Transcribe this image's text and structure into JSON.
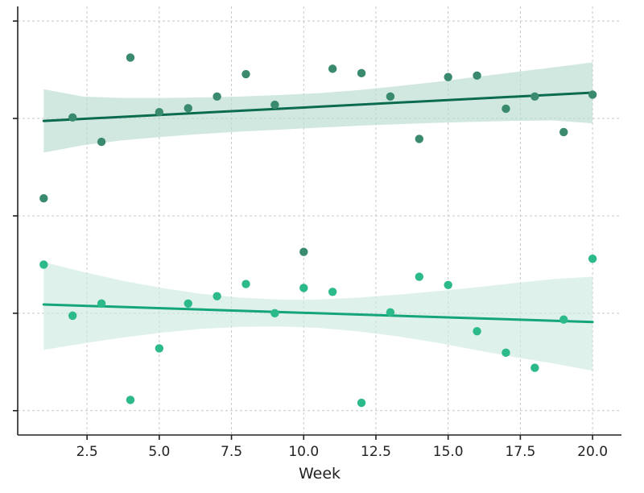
{
  "chart_data": {
    "type": "scatter",
    "xlabel": "Week",
    "ylabel": "",
    "xlim": [
      0.1,
      21.0
    ],
    "ylim": [
      -4.5,
      4.3
    ],
    "x_ticks": [
      2.5,
      5.0,
      7.5,
      10.0,
      12.5,
      15.0,
      17.5,
      20.0
    ],
    "x_tick_labels": [
      "2.5",
      "5.0",
      "7.5",
      "10.0",
      "12.5",
      "15.0",
      "17.5",
      "20.0"
    ],
    "y_ticks": [
      -4,
      -2,
      0,
      2,
      4
    ],
    "grid": true,
    "series": [
      {
        "color": "#3a8a6e",
        "points": [
          [
            1,
            0.36
          ],
          [
            2,
            2.02
          ],
          [
            3,
            1.52
          ],
          [
            4,
            3.25
          ],
          [
            5,
            2.13
          ],
          [
            6,
            2.21
          ],
          [
            7,
            2.45
          ],
          [
            8,
            2.91
          ],
          [
            9,
            2.28
          ],
          [
            10,
            -0.74
          ],
          [
            11,
            3.02
          ],
          [
            12,
            2.93
          ],
          [
            13,
            2.45
          ],
          [
            14,
            1.58
          ],
          [
            15,
            2.85
          ],
          [
            16,
            2.88
          ],
          [
            17,
            2.2
          ],
          [
            18,
            2.45
          ],
          [
            19,
            1.72
          ],
          [
            20,
            2.49
          ]
        ],
        "fit": {
          "x": [
            1,
            20
          ],
          "y": [
            1.95,
            2.53
          ]
        },
        "ci_upper": [
          2.6,
          2.45,
          2.42,
          2.42,
          2.43,
          2.45,
          2.48,
          2.52,
          2.58,
          2.66,
          2.75,
          2.85,
          2.95,
          3.05,
          3.15
        ],
        "ci_lower": [
          1.3,
          1.45,
          1.55,
          1.62,
          1.68,
          1.73,
          1.77,
          1.81,
          1.85,
          1.88,
          1.91,
          1.93,
          1.95,
          1.96,
          1.9
        ],
        "ci_x": [
          1,
          2.36,
          3.71,
          5.07,
          6.43,
          7.79,
          9.14,
          10.5,
          11.86,
          13.21,
          14.57,
          15.93,
          17.29,
          18.64,
          20
        ],
        "line_color": "#0b6b4e",
        "band_color": "#b7dcd0"
      },
      {
        "color": "#2dba8a",
        "points": [
          [
            1,
            -1.0
          ],
          [
            2,
            -2.05
          ],
          [
            3,
            -1.8
          ],
          [
            4,
            -3.78
          ],
          [
            5,
            -2.72
          ],
          [
            6,
            -1.8
          ],
          [
            7,
            -1.65
          ],
          [
            8,
            -1.4
          ],
          [
            9,
            -2.0
          ],
          [
            10,
            -1.48
          ],
          [
            11,
            -1.56
          ],
          [
            12,
            -3.84
          ],
          [
            13,
            -1.98
          ],
          [
            14,
            -1.25
          ],
          [
            15,
            -1.42
          ],
          [
            16,
            -2.37
          ],
          [
            17,
            -2.81
          ],
          [
            18,
            -3.12
          ],
          [
            19,
            -2.13
          ],
          [
            20,
            -0.88
          ]
        ],
        "fit": {
          "x": [
            1,
            20
          ],
          "y": [
            -1.82,
            -2.18
          ]
        },
        "ci_upper": [
          -0.95,
          -1.15,
          -1.33,
          -1.48,
          -1.6,
          -1.68,
          -1.72,
          -1.72,
          -1.68,
          -1.62,
          -1.55,
          -1.47,
          -1.38,
          -1.3,
          -1.25
        ],
        "ci_lower": [
          -2.75,
          -2.62,
          -2.5,
          -2.4,
          -2.32,
          -2.28,
          -2.27,
          -2.3,
          -2.37,
          -2.47,
          -2.6,
          -2.75,
          -2.9,
          -3.03,
          -3.18
        ],
        "ci_x": [
          1,
          2.36,
          3.71,
          5.07,
          6.43,
          7.79,
          9.14,
          10.5,
          11.86,
          13.21,
          14.57,
          15.93,
          17.29,
          18.64,
          20
        ],
        "line_color": "#14a57a",
        "band_color": "#cde9df"
      }
    ]
  }
}
